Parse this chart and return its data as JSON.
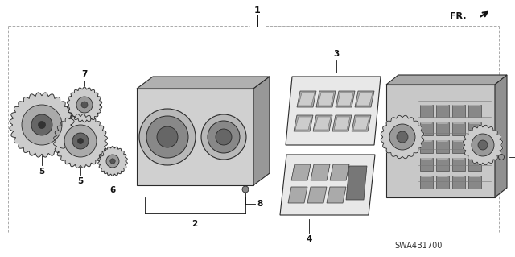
{
  "diagram_code": "SWA4B1700",
  "bg_color": "#ffffff",
  "line_color": "#2a2a2a",
  "text_color": "#111111",
  "gray_light": "#cccccc",
  "gray_mid": "#999999",
  "gray_dark": "#555555",
  "gray_body": "#b8b8b8",
  "border_dash_color": "#aaaaaa",
  "figsize": [
    6.4,
    3.19
  ],
  "dpi": 100
}
